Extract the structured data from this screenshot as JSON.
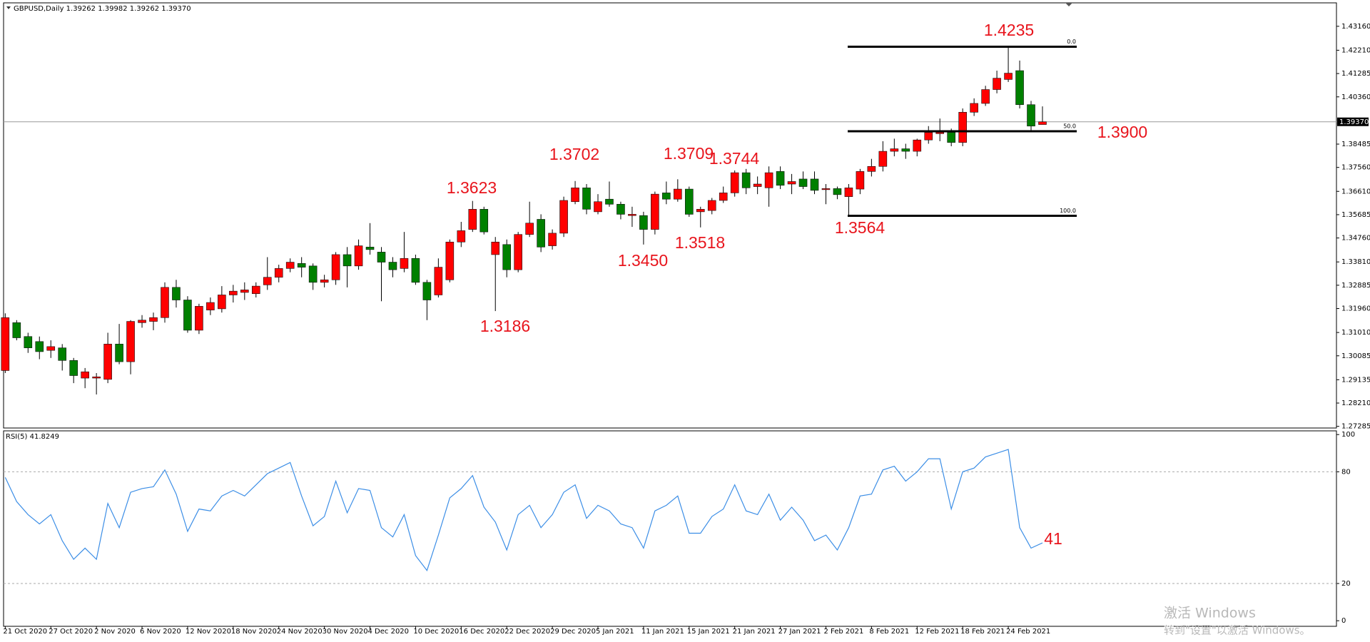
{
  "chart_data": [
    {
      "type": "candlestick",
      "title": "GBPUSD,Daily  1.39262 1.39982 1.39262 1.39370",
      "categories": [
        "21 Oct 2020",
        null,
        null,
        null,
        "27 Oct 2020",
        null,
        null,
        null,
        "2 Nov 2020",
        null,
        null,
        null,
        "6 Nov 2020",
        null,
        null,
        null,
        "12 Nov 2020",
        null,
        null,
        null,
        "18 Nov 2020",
        null,
        null,
        null,
        "24 Nov 2020",
        null,
        null,
        null,
        "30 Nov 2020",
        null,
        null,
        null,
        "4 Dec 2020",
        null,
        null,
        null,
        "10 Dec 2020",
        null,
        null,
        null,
        "16 Dec 2020",
        null,
        null,
        null,
        "22 Dec 2020",
        null,
        null,
        null,
        "29 Dec 2020",
        null,
        null,
        null,
        "5 Jan 2021",
        null,
        null,
        null,
        "11 Jan 2021",
        null,
        null,
        null,
        "15 Jan 2021",
        null,
        null,
        null,
        "21 Jan 2021",
        null,
        null,
        null,
        "27 Jan 2021",
        null,
        null,
        null,
        "2 Feb 2021",
        null,
        null,
        null,
        "8 Feb 2021",
        null,
        null,
        null,
        "12 Feb 2021",
        null,
        null,
        null,
        "18 Feb 2021",
        null,
        null,
        null,
        "24 Feb 2021",
        null,
        null,
        null
      ],
      "open": [
        1.295,
        1.314,
        1.3085,
        1.3065,
        1.303,
        1.304,
        1.299,
        1.292,
        1.292,
        1.2915,
        1.3055,
        1.2985,
        1.314,
        1.3145,
        1.316,
        1.328,
        1.323,
        1.311,
        1.319,
        1.3195,
        1.325,
        1.326,
        1.3255,
        1.329,
        1.332,
        1.3355,
        1.3375,
        1.3365,
        1.33,
        1.331,
        1.341,
        1.3365,
        1.344,
        1.342,
        1.338,
        1.3355,
        1.3395,
        1.33,
        1.325,
        1.331,
        1.346,
        1.351,
        1.359,
        1.341,
        1.345,
        1.335,
        1.349,
        1.355,
        1.3445,
        1.3495,
        1.362,
        1.3675,
        1.358,
        1.363,
        1.361,
        1.3565,
        1.3565,
        1.351,
        1.3655,
        1.363,
        1.367,
        1.358,
        1.3585,
        1.3625,
        1.3655,
        1.3735,
        1.368,
        1.3675,
        1.374,
        1.369,
        1.371,
        1.371,
        1.3668,
        1.3672,
        1.364,
        1.367,
        1.374,
        1.376,
        1.382,
        1.383,
        1.382,
        1.3865,
        1.389,
        1.3895,
        1.3855,
        1.3975,
        1.401,
        1.4065,
        1.4105,
        1.414,
        1.4005,
        1.39262
      ],
      "high": [
        1.3177,
        1.315,
        1.31,
        1.3085,
        1.307,
        1.3055,
        1.3,
        1.296,
        1.294,
        1.31,
        1.3135,
        1.315,
        1.317,
        1.318,
        1.33,
        1.331,
        1.3245,
        1.3215,
        1.324,
        1.3285,
        1.329,
        1.33,
        1.33,
        1.34,
        1.337,
        1.3395,
        1.34,
        1.3375,
        1.333,
        1.342,
        1.344,
        1.347,
        1.3535,
        1.344,
        1.34,
        1.35,
        1.341,
        1.331,
        1.3395,
        1.347,
        1.354,
        1.3623,
        1.36,
        1.348,
        1.347,
        1.35,
        1.362,
        1.357,
        1.351,
        1.364,
        1.3702,
        1.369,
        1.365,
        1.37,
        1.362,
        1.36,
        1.358,
        1.366,
        1.37,
        1.3709,
        1.368,
        1.36,
        1.3635,
        1.368,
        1.3744,
        1.375,
        1.372,
        1.376,
        1.376,
        1.373,
        1.374,
        1.374,
        1.369,
        1.368,
        1.369,
        1.375,
        1.379,
        1.386,
        1.387,
        1.385,
        1.387,
        1.392,
        1.395,
        1.391,
        1.399,
        1.403,
        1.408,
        1.414,
        1.4235,
        1.418,
        1.402,
        1.39982
      ],
      "low": [
        1.294,
        1.307,
        1.302,
        1.2995,
        1.3,
        1.295,
        1.29,
        1.288,
        1.2855,
        1.29,
        1.2975,
        1.2935,
        1.312,
        1.311,
        1.314,
        1.32,
        1.31,
        1.3095,
        1.317,
        1.318,
        1.322,
        1.323,
        1.324,
        1.327,
        1.33,
        1.334,
        1.332,
        1.327,
        1.328,
        1.329,
        1.328,
        1.335,
        1.341,
        1.3225,
        1.332,
        1.334,
        1.329,
        1.315,
        1.324,
        1.33,
        1.344,
        1.35,
        1.349,
        1.3186,
        1.332,
        1.334,
        1.348,
        1.342,
        1.343,
        1.348,
        1.361,
        1.357,
        1.357,
        1.36,
        1.355,
        1.352,
        1.345,
        1.349,
        1.361,
        1.362,
        1.356,
        1.3518,
        1.357,
        1.3615,
        1.364,
        1.365,
        1.365,
        1.36,
        1.367,
        1.365,
        1.367,
        1.365,
        1.361,
        1.363,
        1.3564,
        1.365,
        1.372,
        1.374,
        1.38,
        1.379,
        1.38,
        1.385,
        1.386,
        1.384,
        1.384,
        1.396,
        1.4,
        1.405,
        1.4095,
        1.399,
        1.39,
        1.39262
      ],
      "close": [
        1.316,
        1.308,
        1.304,
        1.3025,
        1.3045,
        1.299,
        1.293,
        1.2945,
        1.2925,
        1.3055,
        1.2985,
        1.3145,
        1.315,
        1.316,
        1.328,
        1.323,
        1.311,
        1.3205,
        1.322,
        1.325,
        1.3265,
        1.327,
        1.3285,
        1.332,
        1.3355,
        1.338,
        1.336,
        1.33,
        1.331,
        1.341,
        1.3365,
        1.3445,
        1.343,
        1.338,
        1.335,
        1.3395,
        1.33,
        1.323,
        1.336,
        1.346,
        1.3505,
        1.359,
        1.35,
        1.346,
        1.335,
        1.349,
        1.3535,
        1.344,
        1.3495,
        1.3625,
        1.3675,
        1.359,
        1.362,
        1.361,
        1.357,
        1.357,
        1.351,
        1.365,
        1.363,
        1.367,
        1.357,
        1.359,
        1.3625,
        1.3655,
        1.3735,
        1.3675,
        1.369,
        1.3735,
        1.3685,
        1.37,
        1.368,
        1.3665,
        1.3672,
        1.3648,
        1.3675,
        1.374,
        1.376,
        1.382,
        1.383,
        1.382,
        1.3865,
        1.3895,
        1.3895,
        1.3855,
        1.3975,
        1.401,
        1.4065,
        1.411,
        1.413,
        1.4005,
        1.392,
        1.3937
      ],
      "up_color": "#ff0000",
      "down_color": "#008000",
      "ylim": [
        1.2722,
        1.4409
      ],
      "yticks": [
        {
          "value": 1.4316,
          "label": "1.43160"
        },
        {
          "value": 1.4221,
          "label": "1.42210"
        },
        {
          "value": 1.41285,
          "label": "1.41285"
        },
        {
          "value": 1.4036,
          "label": "1.40360"
        },
        {
          "value": 1.38485,
          "label": "1.38485"
        },
        {
          "value": 1.3756,
          "label": "1.37560"
        },
        {
          "value": 1.3661,
          "label": "1.36610"
        },
        {
          "value": 1.35685,
          "label": "1.35685"
        },
        {
          "value": 1.3476,
          "label": "1.34760"
        },
        {
          "value": 1.3381,
          "label": "1.33810"
        },
        {
          "value": 1.32885,
          "label": "1.32885"
        },
        {
          "value": 1.3196,
          "label": "1.31960"
        },
        {
          "value": 1.3101,
          "label": "1.31010"
        },
        {
          "value": 1.30085,
          "label": "1.30085"
        },
        {
          "value": 1.29135,
          "label": "1.29135"
        },
        {
          "value": 1.2821,
          "label": "1.28210"
        },
        {
          "value": 1.27285,
          "label": "1.27285"
        }
      ],
      "current_price": {
        "value": 1.3937,
        "label": "1.39370"
      },
      "annotations": [
        1.4235,
        {
          "value": 1.39,
          "label": "1.3900"
        },
        1.3623,
        1.3702,
        1.3709,
        1.3744,
        {
          "value": 1.345,
          "label": "1.3450"
        },
        1.3518,
        1.3564,
        1.3186
      ],
      "annotation_color": "#e8141c",
      "fibonacci": {
        "high": 1.4235,
        "low": 1.3564,
        "levels": [
          {
            "value": 0,
            "label": "0.0"
          },
          {
            "value": 50,
            "label": "50.0"
          },
          {
            "value": 100,
            "label": "100.0"
          }
        ]
      }
    },
    {
      "type": "line",
      "title": "RSI(5) 41.8249",
      "values": [
        77,
        64,
        57,
        52,
        57,
        43,
        33,
        39,
        33,
        63,
        50,
        69,
        71,
        72,
        81,
        68,
        48,
        60,
        59,
        67,
        70,
        67,
        73,
        79,
        82,
        85,
        67,
        51,
        56,
        75,
        58,
        71,
        70,
        50,
        45,
        57,
        35,
        27,
        46,
        66,
        71,
        78,
        61,
        53,
        38,
        57,
        62,
        50,
        57,
        69,
        73,
        55,
        62,
        59,
        52,
        50,
        39,
        59,
        62,
        67,
        47,
        47,
        56,
        60,
        73,
        59,
        57,
        68,
        54,
        61,
        54,
        43,
        46,
        38,
        50,
        67,
        68,
        81,
        83,
        75,
        80,
        87,
        87,
        60,
        80,
        82,
        88,
        90,
        92,
        50,
        39,
        41.8249
      ],
      "color": "#3c8ee6",
      "ylim": [
        -3,
        102
      ],
      "yticks": [
        0,
        20,
        80,
        100
      ],
      "levels": [
        20,
        80
      ],
      "annotations": [
        41
      ],
      "annotation_color": "#e8141c"
    }
  ],
  "watermark": [
    "激活 Windows",
    "转到\"设置\"以激活 Windows。"
  ]
}
